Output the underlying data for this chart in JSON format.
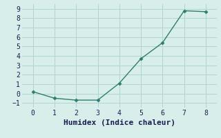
{
  "x": [
    0,
    1,
    2,
    3,
    4,
    5,
    6,
    7,
    8
  ],
  "y": [
    0.2,
    -0.5,
    -0.7,
    -0.7,
    1.1,
    3.7,
    5.4,
    8.8,
    8.7
  ],
  "line_color": "#2e7d6e",
  "marker": "D",
  "marker_size": 2.5,
  "line_width": 1.0,
  "xlabel": "Humidex (Indice chaleur)",
  "xlim": [
    -0.5,
    8.5
  ],
  "ylim": [
    -1.5,
    9.5
  ],
  "xticks": [
    0,
    1,
    2,
    3,
    4,
    5,
    6,
    7,
    8
  ],
  "yticks": [
    -1,
    0,
    1,
    2,
    3,
    4,
    5,
    6,
    7,
    8,
    9
  ],
  "background_color": "#d8eeea",
  "grid_color": "#b0d4ce",
  "tick_label_fontsize": 7,
  "xlabel_fontsize": 8,
  "label_color": "#1a1a4e"
}
